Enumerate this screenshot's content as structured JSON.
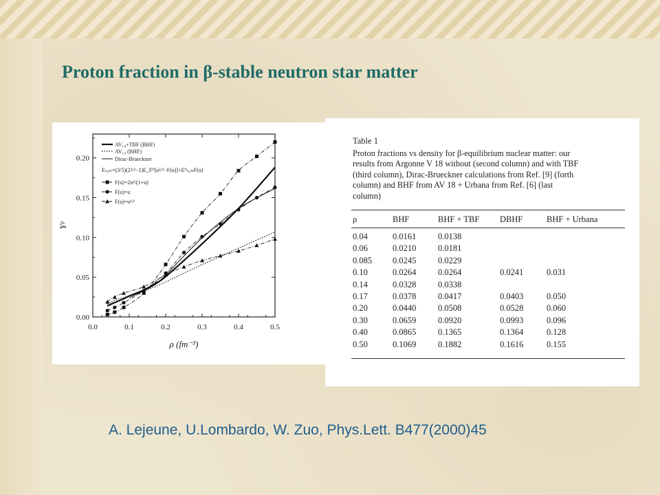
{
  "slide": {
    "title": "Proton fraction in β-stable neutron star matter",
    "citation": "A. Lejeune, U.Lombardo, W. Zuo, Phys.Lett. B477(2000)45"
  },
  "chart_data": {
    "type": "line",
    "xlabel": "ρ (fm⁻³)",
    "ylabel": "Yᵖ",
    "xlim": [
      0.0,
      0.5
    ],
    "ylim": [
      0.0,
      0.23
    ],
    "x_ticks": [
      "0.0",
      "0.1",
      "0.2",
      "0.3",
      "0.4",
      "0.5"
    ],
    "y_ticks": [
      "0.00",
      "0.05",
      "0.10",
      "0.15",
      "0.20"
    ],
    "legend_lines": [
      "AV₁₈+TBF (BHF)",
      "AV₁₈ (BHF)",
      "Dirac-Brueckner",
      "Eₛᵧₘ=(3/5)(2²/³−1)E_F⁰[u²/³−F(u)]+E⁰ₛᵧₘF(u)",
      "F(u)=2u²/(1+u)",
      "F(u)=u",
      "F(u)=u¹/²"
    ],
    "series": [
      {
        "name": "AV₁₈+TBF (BHF)",
        "style": "solid-thick",
        "x": [
          0.04,
          0.06,
          0.085,
          0.1,
          0.14,
          0.17,
          0.2,
          0.3,
          0.4,
          0.5
        ],
        "values": [
          0.0138,
          0.0181,
          0.0229,
          0.0264,
          0.0338,
          0.0417,
          0.0508,
          0.092,
          0.1365,
          0.1882
        ]
      },
      {
        "name": "AV₁₈ (BHF)",
        "style": "dotted",
        "x": [
          0.04,
          0.06,
          0.085,
          0.1,
          0.14,
          0.17,
          0.2,
          0.3,
          0.4,
          0.5
        ],
        "values": [
          0.0161,
          0.021,
          0.0245,
          0.0264,
          0.0328,
          0.0378,
          0.044,
          0.0659,
          0.0865,
          0.1069
        ]
      },
      {
        "name": "Dirac-Brueckner",
        "style": "solid-thin",
        "x": [
          0.1,
          0.17,
          0.2,
          0.3,
          0.4,
          0.5
        ],
        "values": [
          0.0241,
          0.0403,
          0.0528,
          0.0993,
          0.1364,
          0.1616
        ]
      },
      {
        "name": "F(u)=2u²/(1+u)",
        "style": "dashdot-square",
        "x": [
          0.04,
          0.06,
          0.085,
          0.14,
          0.2,
          0.25,
          0.3,
          0.35,
          0.4,
          0.45,
          0.5
        ],
        "values": [
          0.003,
          0.006,
          0.012,
          0.03,
          0.066,
          0.101,
          0.131,
          0.155,
          0.184,
          0.202,
          0.22
        ]
      },
      {
        "name": "F(u)=u",
        "style": "dashdot-circle",
        "x": [
          0.04,
          0.06,
          0.085,
          0.14,
          0.2,
          0.25,
          0.3,
          0.35,
          0.4,
          0.45,
          0.5
        ],
        "values": [
          0.008,
          0.012,
          0.018,
          0.033,
          0.055,
          0.081,
          0.101,
          0.117,
          0.135,
          0.15,
          0.163
        ]
      },
      {
        "name": "F(u)=u¹/²",
        "style": "dashdot-triangle",
        "x": [
          0.04,
          0.06,
          0.085,
          0.14,
          0.2,
          0.25,
          0.3,
          0.35,
          0.4,
          0.45,
          0.5
        ],
        "values": [
          0.019,
          0.025,
          0.03,
          0.038,
          0.053,
          0.063,
          0.071,
          0.077,
          0.083,
          0.09,
          0.098
        ]
      }
    ]
  },
  "table": {
    "heading": "Table 1",
    "caption_lines": [
      "Proton fractions vs density for β-equilibrium nuclear matter: our",
      "results from Argonne V 18 without (second column) and with TBF",
      "(third column), Dirac-Brueckner calculations from Ref. [9] (forth",
      "column) and BHF from AV 18 + Urbana from Ref. [6] (last",
      "column)"
    ],
    "headers": [
      "ρ",
      "BHF",
      "BHF + TBF",
      "DBHF",
      "BHF + Urbana"
    ],
    "rows": [
      [
        "0.04",
        "0.0161",
        "0.0138",
        "",
        ""
      ],
      [
        "0.06",
        "0.0210",
        "0.0181",
        "",
        ""
      ],
      [
        "0.085",
        "0.0245",
        "0.0229",
        "",
        ""
      ],
      [
        "0.10",
        "0.0264",
        "0.0264",
        "0.0241",
        "0.031"
      ],
      [
        "0.14",
        "0.0328",
        "0.0338",
        "",
        ""
      ],
      [
        "0.17",
        "0.0378",
        "0.0417",
        "0.0403",
        "0.050"
      ],
      [
        "0.20",
        "0.0440",
        "0.0508",
        "0.0528",
        "0.060"
      ],
      [
        "0.30",
        "0.0659",
        "0.0920",
        "0.0993",
        "0.096"
      ],
      [
        "0.40",
        "0.0865",
        "0.1365",
        "0.1364",
        "0.128"
      ],
      [
        "0.50",
        "0.1069",
        "0.1882",
        "0.1616",
        "0.155"
      ]
    ]
  }
}
